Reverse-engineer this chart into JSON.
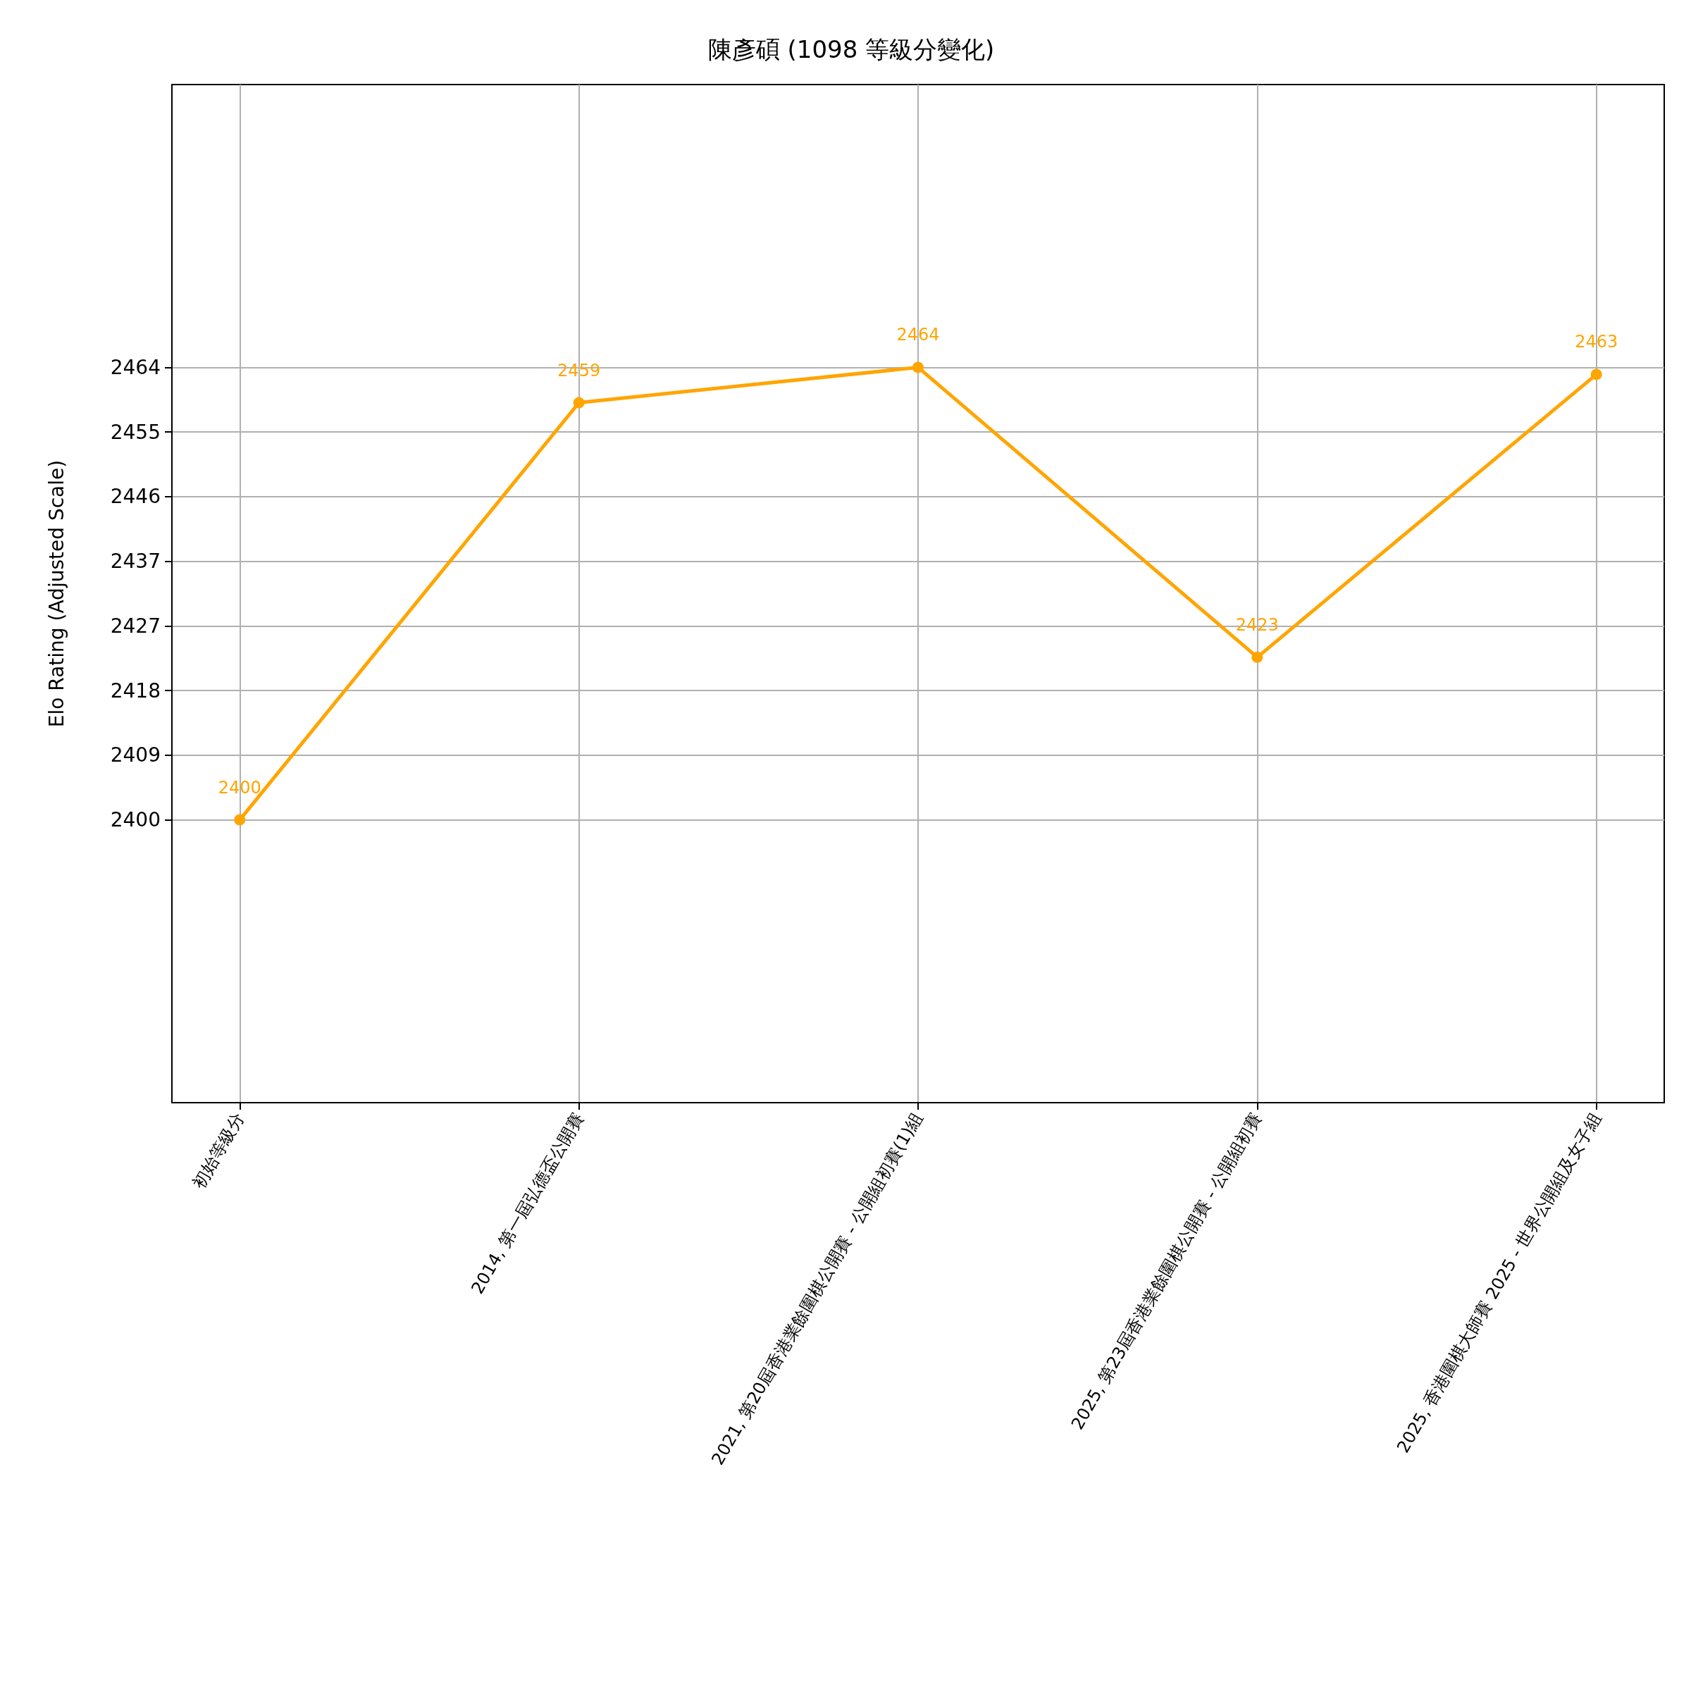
{
  "chart_data": {
    "type": "line",
    "title": "陳彥碩 (1098 等級分變化)",
    "ylabel": "Elo Rating (Adjusted Scale)",
    "categories": [
      "初始等級分",
      "2014, 第一屆弘德盃公開賽",
      "2021, 第20屆香港業餘圍棋公開賽 - 公開組初賽(1)組",
      "2025, 第23屆香港業餘圍棋公開賽 - 公開組初賽",
      "2025, 香港圍棋大師賽 2025 - 世界公開組及女子組"
    ],
    "series": [
      {
        "color": "#ffa500",
        "values": [
          2400,
          2459,
          2464,
          2423,
          2463
        ]
      }
    ],
    "data_labels": true,
    "ylim": [
      2360,
      2504
    ],
    "yticks": [
      2400,
      {
        "value": 2409.14,
        "label": "2409"
      },
      {
        "value": 2418.29,
        "label": "2418"
      },
      {
        "value": 2427.43,
        "label": "2427"
      },
      {
        "value": 2436.57,
        "label": "2437"
      },
      {
        "value": 2445.71,
        "label": "2446"
      },
      {
        "value": 2454.86,
        "label": "2455"
      },
      2464
    ],
    "grid": true,
    "marker": "circle",
    "line_style": "solid"
  }
}
